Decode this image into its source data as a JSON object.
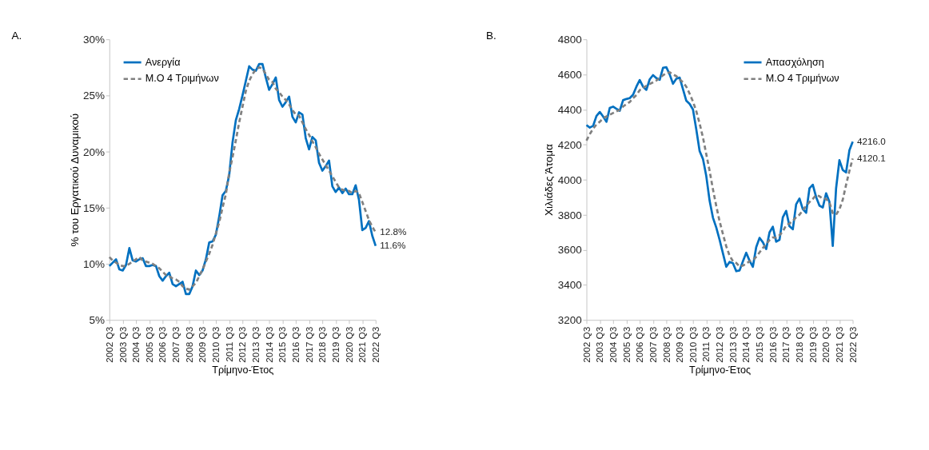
{
  "chart_data": [
    {
      "type": "line",
      "title": "A.",
      "xlabel": "Τρίμηνο-Έτος",
      "ylabel": "% του Εργατικού Δυναμικού",
      "categories": [
        "2002 Q3",
        null,
        null,
        null,
        "2003 Q3",
        null,
        null,
        null,
        "2004 Q3",
        null,
        null,
        null,
        "2005 Q3",
        null,
        null,
        null,
        "2006 Q3",
        null,
        null,
        null,
        "2007 Q3",
        null,
        null,
        null,
        "2008 Q3",
        null,
        null,
        null,
        "2009 Q3",
        null,
        null,
        null,
        "2010 Q3",
        null,
        null,
        null,
        "2011 Q3",
        null,
        null,
        null,
        "2012 Q3",
        null,
        null,
        null,
        "2013 Q3",
        null,
        null,
        null,
        "2014 Q3",
        null,
        null,
        null,
        "2015 Q3",
        null,
        null,
        null,
        "2016 Q3",
        null,
        null,
        null,
        "2017 Q3",
        null,
        null,
        null,
        "2018 Q3",
        null,
        null,
        null,
        "2019 Q3",
        null,
        null,
        null,
        "2020 Q3",
        null,
        null,
        null,
        "2021 Q3",
        null,
        null,
        null,
        "2022 Q3"
      ],
      "series": [
        {
          "name": "Ανεργία",
          "color": "#0070c0",
          "line_style": "solid",
          "values": [
            9.8,
            10.1,
            10.4,
            9.5,
            9.4,
            9.9,
            11.4,
            10.3,
            10.2,
            10.4,
            10.5,
            9.8,
            9.8,
            9.9,
            9.8,
            8.9,
            8.5,
            8.9,
            9.2,
            8.2,
            8.0,
            8.2,
            8.4,
            7.3,
            7.3,
            8.0,
            9.4,
            9.0,
            9.4,
            10.4,
            11.9,
            12.0,
            12.6,
            14.2,
            16.1,
            16.5,
            17.9,
            20.8,
            22.8,
            23.8,
            25.0,
            26.3,
            27.6,
            27.3,
            27.2,
            27.8,
            27.8,
            26.6,
            25.5,
            26.0,
            26.6,
            24.6,
            24.0,
            24.4,
            24.9,
            23.1,
            22.6,
            23.5,
            23.3,
            21.2,
            20.2,
            21.3,
            21.0,
            19.0,
            18.3,
            18.7,
            19.2,
            16.9,
            16.4,
            16.8,
            16.3,
            16.7,
            16.2,
            16.2,
            17.0,
            15.7,
            13.0,
            13.2,
            13.8,
            12.5,
            11.6
          ],
          "value_labels": [
            null,
            null,
            null,
            null,
            null,
            null,
            null,
            null,
            null,
            null,
            null,
            null,
            null,
            null,
            null,
            null,
            null,
            null,
            null,
            null,
            null,
            null,
            null,
            null,
            null,
            null,
            null,
            null,
            null,
            null,
            null,
            null,
            null,
            null,
            null,
            null,
            null,
            null,
            null,
            null,
            null,
            null,
            null,
            null,
            null,
            null,
            null,
            null,
            null,
            null,
            null,
            null,
            null,
            null,
            null,
            null,
            null,
            null,
            null,
            null,
            null,
            null,
            null,
            null,
            null,
            null,
            null,
            null,
            null,
            null,
            null,
            null,
            null,
            null,
            null,
            null,
            null,
            null,
            null,
            null,
            "11.6%"
          ]
        },
        {
          "name": "Μ.Ο 4 Τριμήνων",
          "color": "#808080",
          "line_style": "dashed",
          "values": [
            10.6,
            10.3,
            10.1,
            9.9,
            9.8,
            9.8,
            10.0,
            10.2,
            10.4,
            10.6,
            10.3,
            10.2,
            10.1,
            10.0,
            9.8,
            9.6,
            9.3,
            9.0,
            8.9,
            8.7,
            8.6,
            8.4,
            8.0,
            7.8,
            7.7,
            8.0,
            8.3,
            8.9,
            9.5,
            10.2,
            10.9,
            11.7,
            12.7,
            13.7,
            15.0,
            16.2,
            18.1,
            19.5,
            21.0,
            22.6,
            24.0,
            25.4,
            26.3,
            26.9,
            27.3,
            27.5,
            27.4,
            26.9,
            26.4,
            26.2,
            25.6,
            25.3,
            24.9,
            24.6,
            24.2,
            23.7,
            23.3,
            23.2,
            22.6,
            22.0,
            21.5,
            20.9,
            20.4,
            19.8,
            19.3,
            18.8,
            18.3,
            17.8,
            17.3,
            16.8,
            16.6,
            16.5,
            16.5,
            16.3,
            16.5,
            16.3,
            15.5,
            14.7,
            13.9,
            13.3,
            12.8
          ],
          "value_labels": [
            null,
            null,
            null,
            null,
            null,
            null,
            null,
            null,
            null,
            null,
            null,
            null,
            null,
            null,
            null,
            null,
            null,
            null,
            null,
            null,
            null,
            null,
            null,
            null,
            null,
            null,
            null,
            null,
            null,
            null,
            null,
            null,
            null,
            null,
            null,
            null,
            null,
            null,
            null,
            null,
            null,
            null,
            null,
            null,
            null,
            null,
            null,
            null,
            null,
            null,
            null,
            null,
            null,
            null,
            null,
            null,
            null,
            null,
            null,
            null,
            null,
            null,
            null,
            null,
            null,
            null,
            null,
            null,
            null,
            null,
            null,
            null,
            null,
            null,
            null,
            null,
            null,
            null,
            null,
            null,
            "12.8%"
          ]
        }
      ],
      "ylim": [
        5,
        30
      ],
      "yticks": [
        {
          "value": 5,
          "label": "5%"
        },
        {
          "value": 10,
          "label": "10%"
        },
        {
          "value": 15,
          "label": "15%"
        },
        {
          "value": 20,
          "label": "20%"
        },
        {
          "value": 25,
          "label": "25%"
        },
        {
          "value": 30,
          "label": "30%"
        }
      ],
      "grid": false,
      "legend": "top left"
    },
    {
      "type": "line",
      "title": "B.",
      "xlabel": "Τρίμηνο-Έτος",
      "ylabel": "Χιλιάδες Άτομα",
      "categories": [
        "2002 Q3",
        null,
        null,
        null,
        "2003 Q3",
        null,
        null,
        null,
        "2004 Q3",
        null,
        null,
        null,
        "2005 Q3",
        null,
        null,
        null,
        "2006 Q3",
        null,
        null,
        null,
        "2007 Q3",
        null,
        null,
        null,
        "2008 Q3",
        null,
        null,
        null,
        "2009 Q3",
        null,
        null,
        null,
        "2010 Q3",
        null,
        null,
        null,
        "2011 Q3",
        null,
        null,
        null,
        "2012 Q3",
        null,
        null,
        null,
        "2013 Q3",
        null,
        null,
        null,
        "2014 Q3",
        null,
        null,
        null,
        "2015 Q3",
        null,
        null,
        null,
        "2016 Q3",
        null,
        null,
        null,
        "2017 Q3",
        null,
        null,
        null,
        "2018 Q3",
        null,
        null,
        null,
        "2019 Q3",
        null,
        null,
        null,
        "2020 Q3",
        null,
        null,
        null,
        "2021 Q3",
        null,
        null,
        null,
        "2022 Q3"
      ],
      "series": [
        {
          "name": "Απασχόληση",
          "color": "#0070c0",
          "line_style": "solid",
          "values": [
            4311,
            4297,
            4307,
            4363,
            4386,
            4360,
            4330,
            4409,
            4416,
            4404,
            4393,
            4453,
            4460,
            4465,
            4484,
            4530,
            4568,
            4530,
            4512,
            4572,
            4596,
            4579,
            4569,
            4638,
            4641,
            4600,
            4547,
            4575,
            4582,
            4516,
            4450,
            4432,
            4400,
            4286,
            4163,
            4118,
            4020,
            3880,
            3783,
            3727,
            3657,
            3580,
            3503,
            3531,
            3524,
            3478,
            3482,
            3534,
            3583,
            3538,
            3503,
            3615,
            3668,
            3643,
            3604,
            3699,
            3731,
            3646,
            3657,
            3785,
            3822,
            3734,
            3717,
            3859,
            3892,
            3832,
            3811,
            3950,
            3971,
            3901,
            3852,
            3841,
            3922,
            3873,
            3622,
            3950,
            4111,
            4055,
            4041,
            4167,
            4216.0
          ],
          "value_labels": [
            null,
            null,
            null,
            null,
            null,
            null,
            null,
            null,
            null,
            null,
            null,
            null,
            null,
            null,
            null,
            null,
            null,
            null,
            null,
            null,
            null,
            null,
            null,
            null,
            null,
            null,
            null,
            null,
            null,
            null,
            null,
            null,
            null,
            null,
            null,
            null,
            null,
            null,
            null,
            null,
            null,
            null,
            null,
            null,
            null,
            null,
            null,
            null,
            null,
            null,
            null,
            null,
            null,
            null,
            null,
            null,
            null,
            null,
            null,
            null,
            null,
            null,
            null,
            null,
            null,
            null,
            null,
            null,
            null,
            null,
            null,
            null,
            null,
            null,
            null,
            null,
            null,
            null,
            null,
            null,
            "4216.0"
          ]
        },
        {
          "name": "Μ.Ο 4 Τριμήνων",
          "color": "#808080",
          "line_style": "dashed",
          "values": [
            4223,
            4260,
            4290,
            4315,
            4330,
            4350,
            4360,
            4370,
            4380,
            4390,
            4398,
            4417,
            4430,
            4443,
            4465,
            4482,
            4510,
            4523,
            4535,
            4545,
            4555,
            4565,
            4580,
            4595,
            4607,
            4612,
            4600,
            4590,
            4572,
            4555,
            4530,
            4490,
            4445,
            4390,
            4320,
            4240,
            4145,
            4050,
            3945,
            3850,
            3762,
            3690,
            3620,
            3567,
            3535,
            3525,
            3505,
            3510,
            3520,
            3535,
            3540,
            3560,
            3585,
            3610,
            3633,
            3655,
            3670,
            3670,
            3683,
            3705,
            3740,
            3750,
            3765,
            3785,
            3800,
            3825,
            3850,
            3872,
            3890,
            3912,
            3905,
            3892,
            3890,
            3870,
            3810,
            3800,
            3830,
            3885,
            3970,
            4050,
            4120.1
          ],
          "value_labels": [
            null,
            null,
            null,
            null,
            null,
            null,
            null,
            null,
            null,
            null,
            null,
            null,
            null,
            null,
            null,
            null,
            null,
            null,
            null,
            null,
            null,
            null,
            null,
            null,
            null,
            null,
            null,
            null,
            null,
            null,
            null,
            null,
            null,
            null,
            null,
            null,
            null,
            null,
            null,
            null,
            null,
            null,
            null,
            null,
            null,
            null,
            null,
            null,
            null,
            null,
            null,
            null,
            null,
            null,
            null,
            null,
            null,
            null,
            null,
            null,
            null,
            null,
            null,
            null,
            null,
            null,
            null,
            null,
            null,
            null,
            null,
            null,
            null,
            null,
            null,
            null,
            null,
            null,
            null,
            null,
            "4120.1"
          ]
        }
      ],
      "ylim": [
        3200,
        4800
      ],
      "yticks": [
        3200,
        3400,
        3600,
        3800,
        4000,
        4200,
        4400,
        4600,
        4800
      ],
      "grid": false,
      "legend": "top right"
    }
  ]
}
